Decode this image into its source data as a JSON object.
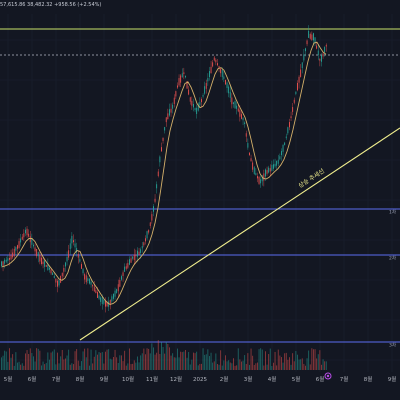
{
  "header": {
    "ohlc_text": "57,615.86  38,482.32  +958.56 (+2.54%)"
  },
  "x_axis": {
    "labels": [
      "5월",
      "6월",
      "7월",
      "8월",
      "9월",
      "10월",
      "11월",
      "12월",
      "2025",
      "2월",
      "3월",
      "4월",
      "5월",
      "6월",
      "7월",
      "8월",
      "9월"
    ]
  },
  "levels": [
    {
      "name": "top-resistance",
      "color": "#c9e36a",
      "label": "",
      "style": "solid"
    },
    {
      "name": "dashed-resistance",
      "color": "#b8bcc8",
      "label": "",
      "style": "dashed"
    },
    {
      "name": "support-1",
      "color": "#5b6cf0",
      "label": "1차",
      "style": "solid"
    },
    {
      "name": "support-2",
      "color": "#5b6cf0",
      "label": "2차",
      "style": "solid"
    },
    {
      "name": "support-3",
      "color": "#5b6cf0",
      "label": "3차",
      "style": "solid"
    }
  ],
  "trendline": {
    "label": "상승 추세선",
    "color": "#f0ee8e"
  },
  "colors": {
    "background": "#131722",
    "up": "#26a69a",
    "down": "#ef5350",
    "ma": "#d4b06a",
    "marker": "#b84de8"
  }
}
